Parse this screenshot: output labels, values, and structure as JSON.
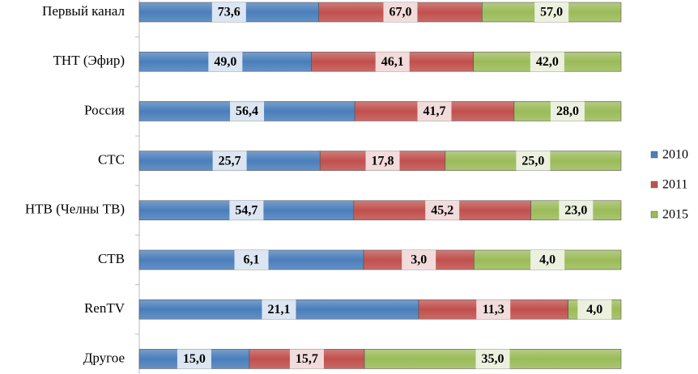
{
  "chart_data": {
    "type": "bar",
    "orientation": "horizontal",
    "stacked": "percent",
    "categories": [
      "Первый канал",
      "ТНТ (Эфир)",
      "Россия",
      "СТС",
      "НТВ (Челны ТВ)",
      "СТВ",
      "RenTV",
      "Другое"
    ],
    "series": [
      {
        "name": "2010",
        "color": "#4a7ebb",
        "label_background": "#dce6f2",
        "values": [
          73.6,
          49.0,
          56.4,
          25.7,
          54.7,
          6.1,
          21.1,
          15.0
        ],
        "value_labels": [
          "73,6",
          "49,0",
          "56,4",
          "25,7",
          "54,7",
          "6,1",
          "21,1",
          "15,0"
        ]
      },
      {
        "name": "2011",
        "color": "#c0504d",
        "label_background": "#f2dcdb",
        "values": [
          67.0,
          46.1,
          41.7,
          17.8,
          45.2,
          3.0,
          11.3,
          15.7
        ],
        "value_labels": [
          "67,0",
          "46,1",
          "41,7",
          "17,8",
          "45,2",
          "3,0",
          "11,3",
          "15,7"
        ]
      },
      {
        "name": "2015",
        "color": "#9bbb59",
        "label_background": "#ebf1de",
        "values": [
          57.0,
          42.0,
          28.0,
          25.0,
          23.0,
          4.0,
          4.0,
          35.0
        ],
        "value_labels": [
          "57,0",
          "42,0",
          "28,0",
          "25,0",
          "23,0",
          "4,0",
          "4,0",
          "35,0"
        ]
      }
    ],
    "legend": "right"
  }
}
